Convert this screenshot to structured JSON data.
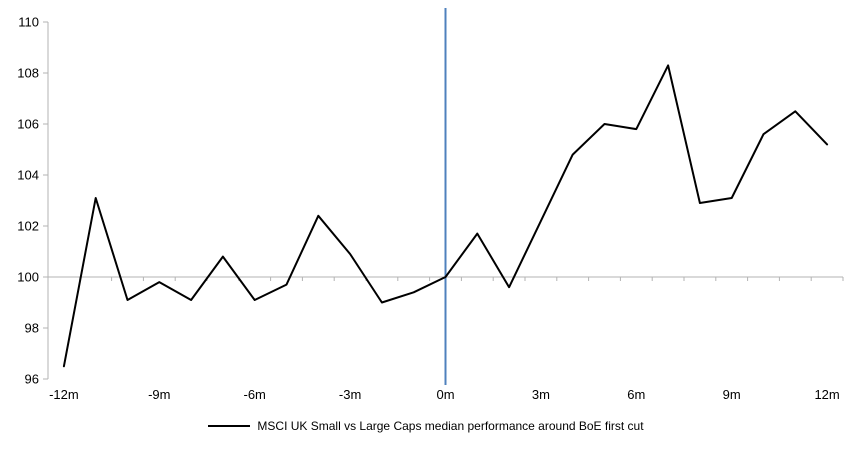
{
  "chart_data": {
    "type": "line",
    "title": "",
    "x_months": [
      -12,
      -11,
      -10,
      -9,
      -8,
      -7,
      -6,
      -5,
      -4,
      -3,
      -2,
      -1,
      0,
      1,
      2,
      3,
      4,
      5,
      6,
      7,
      8,
      9,
      10,
      11,
      12
    ],
    "series": [
      {
        "name": "MSCI UK Small vs Large Caps median performance around BoE first cut",
        "color": "#000000",
        "values": [
          96.5,
          103.1,
          99.1,
          99.8,
          99.1,
          100.8,
          99.1,
          99.7,
          102.4,
          100.9,
          99.0,
          99.4,
          100.0,
          101.7,
          99.6,
          102.2,
          104.8,
          106.0,
          105.8,
          108.3,
          102.9,
          103.1,
          105.6,
          106.5,
          105.2
        ]
      }
    ],
    "x_axis": {
      "tick_months": [
        -12,
        -9,
        -6,
        -3,
        0,
        3,
        6,
        9,
        12
      ],
      "tick_labels": [
        "-12m",
        "-9m",
        "-6m",
        "-3m",
        "0m",
        "3m",
        "6m",
        "9m",
        "12m"
      ]
    },
    "y_axis": {
      "min": 96,
      "max": 110,
      "ticks": [
        96,
        98,
        100,
        102,
        104,
        106,
        108,
        110
      ],
      "labels": [
        "96",
        "98",
        "100",
        "102",
        "104",
        "106",
        "108",
        "110"
      ]
    },
    "baseline_value": 100,
    "event_line": {
      "month": 0,
      "color": "#4F81BD"
    },
    "axis_color": "#B3B3B3",
    "background": "#FFFFFF",
    "legend_position": "bottom-center",
    "grid": "off"
  }
}
